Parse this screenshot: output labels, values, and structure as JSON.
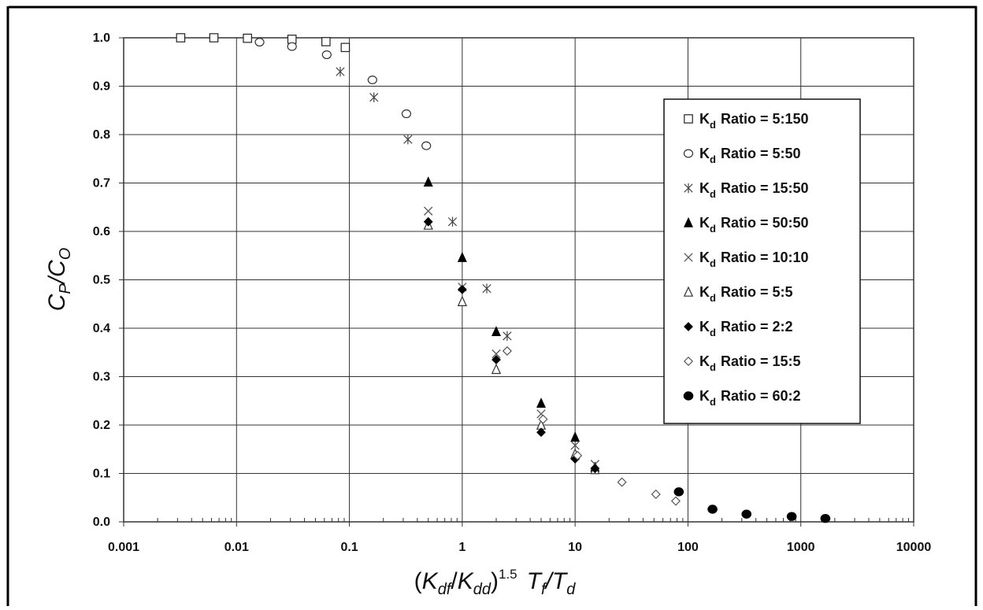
{
  "chart_data": {
    "type": "scatter",
    "x_scale": "log",
    "xlim": [
      0.001,
      10000
    ],
    "ylim": [
      0.0,
      1.0
    ],
    "grid": true,
    "legend_position": "right",
    "x_ticks": [
      "0.001",
      "0.01",
      "0.1",
      "1",
      "10",
      "100",
      "1000",
      "10000"
    ],
    "y_ticks": [
      "0.0",
      "0.1",
      "0.2",
      "0.3",
      "0.4",
      "0.5",
      "0.6",
      "0.7",
      "0.8",
      "0.9",
      "1.0"
    ],
    "xlabel": {
      "open": "(",
      "k1": "K",
      "k1_sub": "df",
      "slash": "/",
      "k2": "K",
      "k2_sub": "dd",
      "close": ")",
      "power": "1.5",
      "t1": "T",
      "t1_sub": "f",
      "slash2": "/",
      "t2": "T",
      "t2_sub": "d"
    },
    "ylabel": {
      "c1": "C",
      "c1_sub": "P",
      "slash": "/",
      "c2": "C",
      "c2_sub": "O"
    },
    "legend_prefix": "K",
    "legend_sub": "d",
    "series": [
      {
        "name": "Ratio = 5:150",
        "marker": "square-open",
        "points": [
          [
            0.0032,
            1.0
          ],
          [
            0.0063,
            1.0
          ],
          [
            0.0125,
            0.999
          ],
          [
            0.031,
            0.997
          ],
          [
            0.062,
            0.992
          ],
          [
            0.092,
            0.98
          ]
        ]
      },
      {
        "name": "Ratio = 5:50",
        "marker": "circle-open",
        "points": [
          [
            0.016,
            0.991
          ],
          [
            0.031,
            0.982
          ],
          [
            0.063,
            0.965
          ],
          [
            0.16,
            0.913
          ],
          [
            0.32,
            0.843
          ],
          [
            0.48,
            0.777
          ]
        ]
      },
      {
        "name": "Ratio = 15:50",
        "marker": "asterisk",
        "points": [
          [
            0.083,
            0.93
          ],
          [
            0.165,
            0.877
          ],
          [
            0.33,
            0.79
          ],
          [
            0.82,
            0.62
          ],
          [
            1.65,
            0.482
          ],
          [
            2.5,
            0.384
          ]
        ]
      },
      {
        "name": "Ratio = 50:50",
        "marker": "triangle-filled",
        "points": [
          [
            0.5,
            0.702
          ],
          [
            1.0,
            0.546
          ],
          [
            2.0,
            0.393
          ],
          [
            5.0,
            0.245
          ],
          [
            10.0,
            0.175
          ],
          [
            15.0,
            0.113
          ]
        ]
      },
      {
        "name": "Ratio = 10:10",
        "marker": "x",
        "points": [
          [
            0.5,
            0.642
          ],
          [
            1.0,
            0.485
          ],
          [
            2.0,
            0.347
          ],
          [
            5.0,
            0.223
          ],
          [
            10.0,
            0.158
          ],
          [
            15.0,
            0.119
          ]
        ]
      },
      {
        "name": "Ratio = 5:5",
        "marker": "triangle-open",
        "points": [
          [
            0.5,
            0.613
          ],
          [
            1.0,
            0.455
          ],
          [
            2.0,
            0.315
          ],
          [
            5.0,
            0.2
          ],
          [
            10.0,
            0.14
          ],
          [
            15.0,
            0.108
          ]
        ]
      },
      {
        "name": "Ratio = 2:2",
        "marker": "diamond-filled",
        "points": [
          [
            0.5,
            0.62
          ],
          [
            1.0,
            0.48
          ],
          [
            2.0,
            0.335
          ],
          [
            5.0,
            0.185
          ],
          [
            10.0,
            0.13
          ],
          [
            15.0,
            0.11
          ]
        ]
      },
      {
        "name": "Ratio = 15:5",
        "marker": "diamond-open",
        "points": [
          [
            2.5,
            0.353
          ],
          [
            5.2,
            0.212
          ],
          [
            10.5,
            0.137
          ],
          [
            26.0,
            0.082
          ],
          [
            52.0,
            0.057
          ],
          [
            78.0,
            0.043
          ]
        ]
      },
      {
        "name": "Ratio = 60:2",
        "marker": "circle-filled",
        "points": [
          [
            83.0,
            0.062
          ],
          [
            165.0,
            0.026
          ],
          [
            330.0,
            0.016
          ],
          [
            830.0,
            0.011
          ],
          [
            1650.0,
            0.007
          ]
        ]
      }
    ]
  }
}
